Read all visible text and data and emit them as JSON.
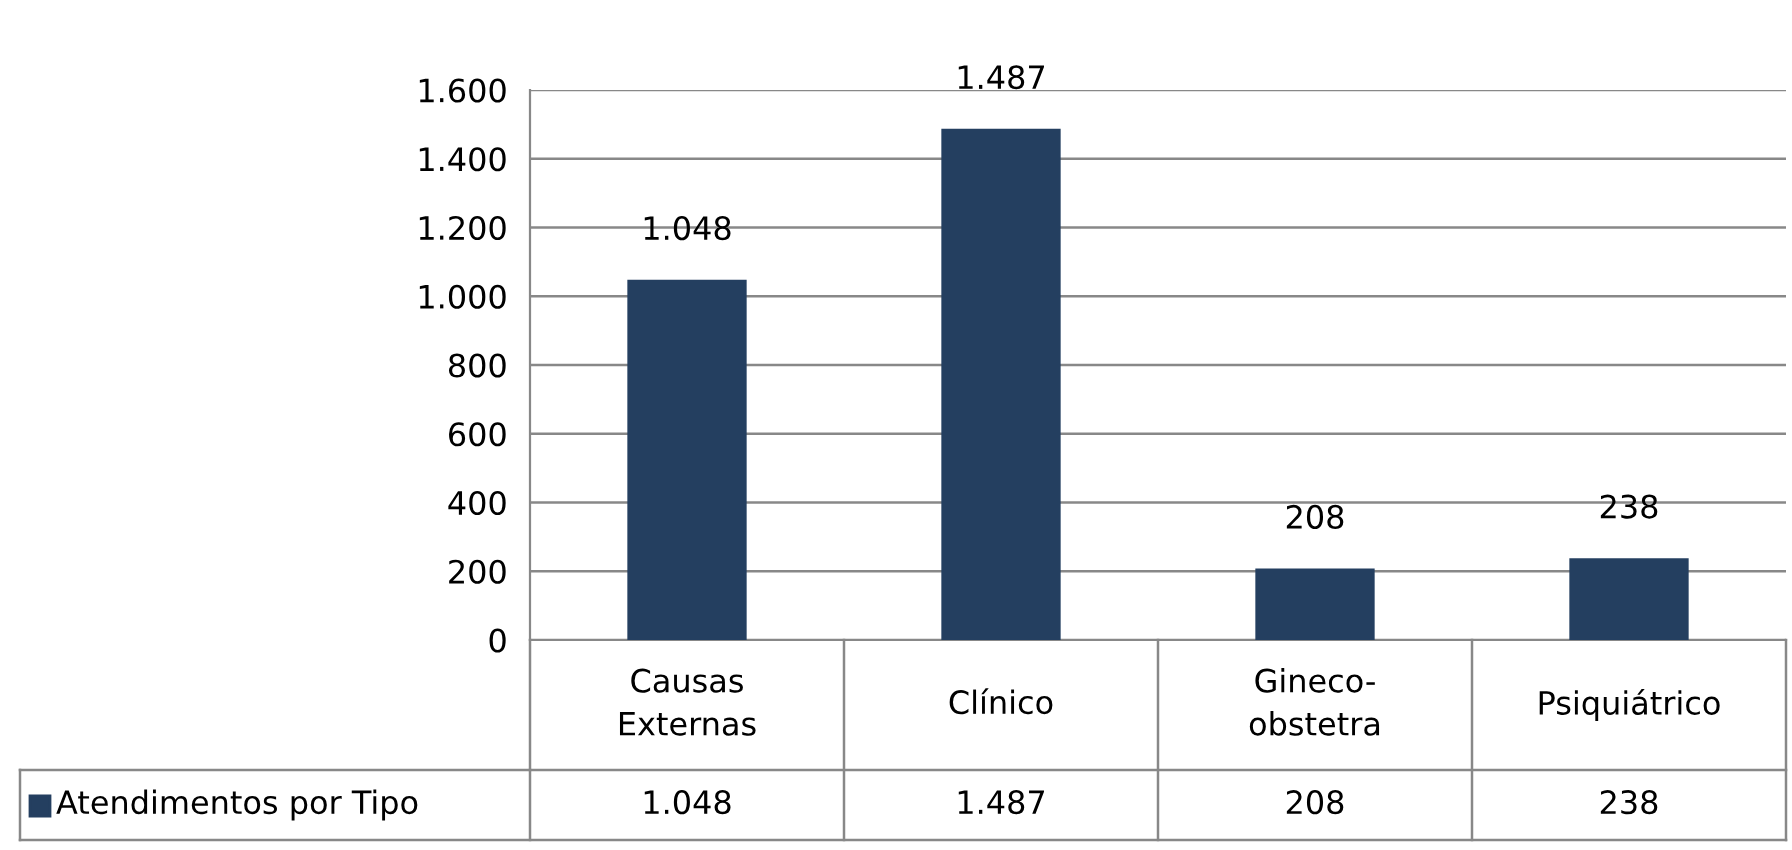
{
  "chart_data": {
    "type": "bar",
    "categories": [
      "Causas\nExternas",
      "Clínico",
      "Gineco-\nobstetra",
      "Psiquiátrico"
    ],
    "series": [
      {
        "name": "Atendimentos por Tipo",
        "color": "#243f60",
        "values": [
          1048,
          1487,
          208,
          238
        ],
        "value_labels": [
          "1.048",
          "1.487",
          "208",
          "238"
        ]
      }
    ],
    "ylim": [
      0,
      1600
    ],
    "yticks": [
      0,
      {
        "value": 200,
        "label": "200"
      },
      {
        "value": 400,
        "label": "400"
      },
      {
        "value": 600,
        "label": "600"
      },
      {
        "value": 800,
        "label": "800"
      },
      {
        "value": 1000,
        "label": "1.000"
      },
      {
        "value": 1200,
        "label": "1.200"
      },
      {
        "value": 1400,
        "label": "1.400"
      },
      {
        "value": 1600,
        "label": "1.600"
      }
    ],
    "grid": "y",
    "legend": "bottom"
  }
}
